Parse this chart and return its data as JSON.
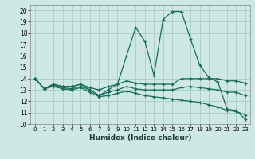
{
  "xlabel": "Humidex (Indice chaleur)",
  "background_color": "#cee8e5",
  "grid_color": "#aacbc7",
  "line_color": "#1a6b5a",
  "xlim": [
    -0.5,
    23.5
  ],
  "ylim": [
    10,
    20.5
  ],
  "xticks": [
    0,
    1,
    2,
    3,
    4,
    5,
    6,
    7,
    8,
    9,
    10,
    11,
    12,
    13,
    14,
    15,
    16,
    17,
    18,
    19,
    20,
    21,
    22,
    23
  ],
  "yticks": [
    10,
    11,
    12,
    13,
    14,
    15,
    16,
    17,
    18,
    19,
    20
  ],
  "lines": [
    {
      "x": [
        0,
        1,
        2,
        3,
        4,
        5,
        6,
        7,
        8,
        9,
        10,
        11,
        12,
        13,
        14,
        15,
        16,
        17,
        18,
        19,
        20,
        21,
        22,
        23
      ],
      "y": [
        14,
        13.1,
        13.5,
        13.3,
        13.3,
        13.5,
        13.0,
        12.5,
        13.0,
        13.5,
        16.0,
        18.5,
        17.3,
        14.3,
        19.2,
        19.9,
        19.9,
        17.5,
        15.2,
        14.1,
        13.7,
        11.3,
        11.2,
        10.4
      ]
    },
    {
      "x": [
        0,
        1,
        2,
        3,
        4,
        5,
        6,
        7,
        8,
        9,
        10,
        11,
        12,
        13,
        14,
        15,
        16,
        17,
        18,
        19,
        20,
        21,
        22,
        23
      ],
      "y": [
        14,
        13.1,
        13.5,
        13.3,
        13.3,
        13.5,
        13.2,
        13.0,
        13.3,
        13.5,
        13.8,
        13.6,
        13.5,
        13.5,
        13.5,
        13.5,
        14.0,
        14.0,
        14.0,
        14.0,
        14.0,
        13.8,
        13.8,
        13.6
      ]
    },
    {
      "x": [
        0,
        1,
        2,
        3,
        4,
        5,
        6,
        7,
        8,
        9,
        10,
        11,
        12,
        13,
        14,
        15,
        16,
        17,
        18,
        19,
        20,
        21,
        22,
        23
      ],
      "y": [
        14,
        13.1,
        13.4,
        13.2,
        13.1,
        13.3,
        13.0,
        12.5,
        12.8,
        13.0,
        13.3,
        13.1,
        13.0,
        13.0,
        13.0,
        13.0,
        13.2,
        13.3,
        13.2,
        13.1,
        13.0,
        12.8,
        12.8,
        12.5
      ]
    },
    {
      "x": [
        0,
        1,
        2,
        3,
        4,
        5,
        6,
        7,
        8,
        9,
        10,
        11,
        12,
        13,
        14,
        15,
        16,
        17,
        18,
        19,
        20,
        21,
        22,
        23
      ],
      "y": [
        14,
        13.1,
        13.3,
        13.1,
        13.0,
        13.2,
        12.8,
        12.4,
        12.5,
        12.7,
        12.9,
        12.7,
        12.5,
        12.4,
        12.3,
        12.2,
        12.1,
        12.0,
        11.9,
        11.7,
        11.5,
        11.2,
        11.1,
        10.8
      ]
    }
  ]
}
